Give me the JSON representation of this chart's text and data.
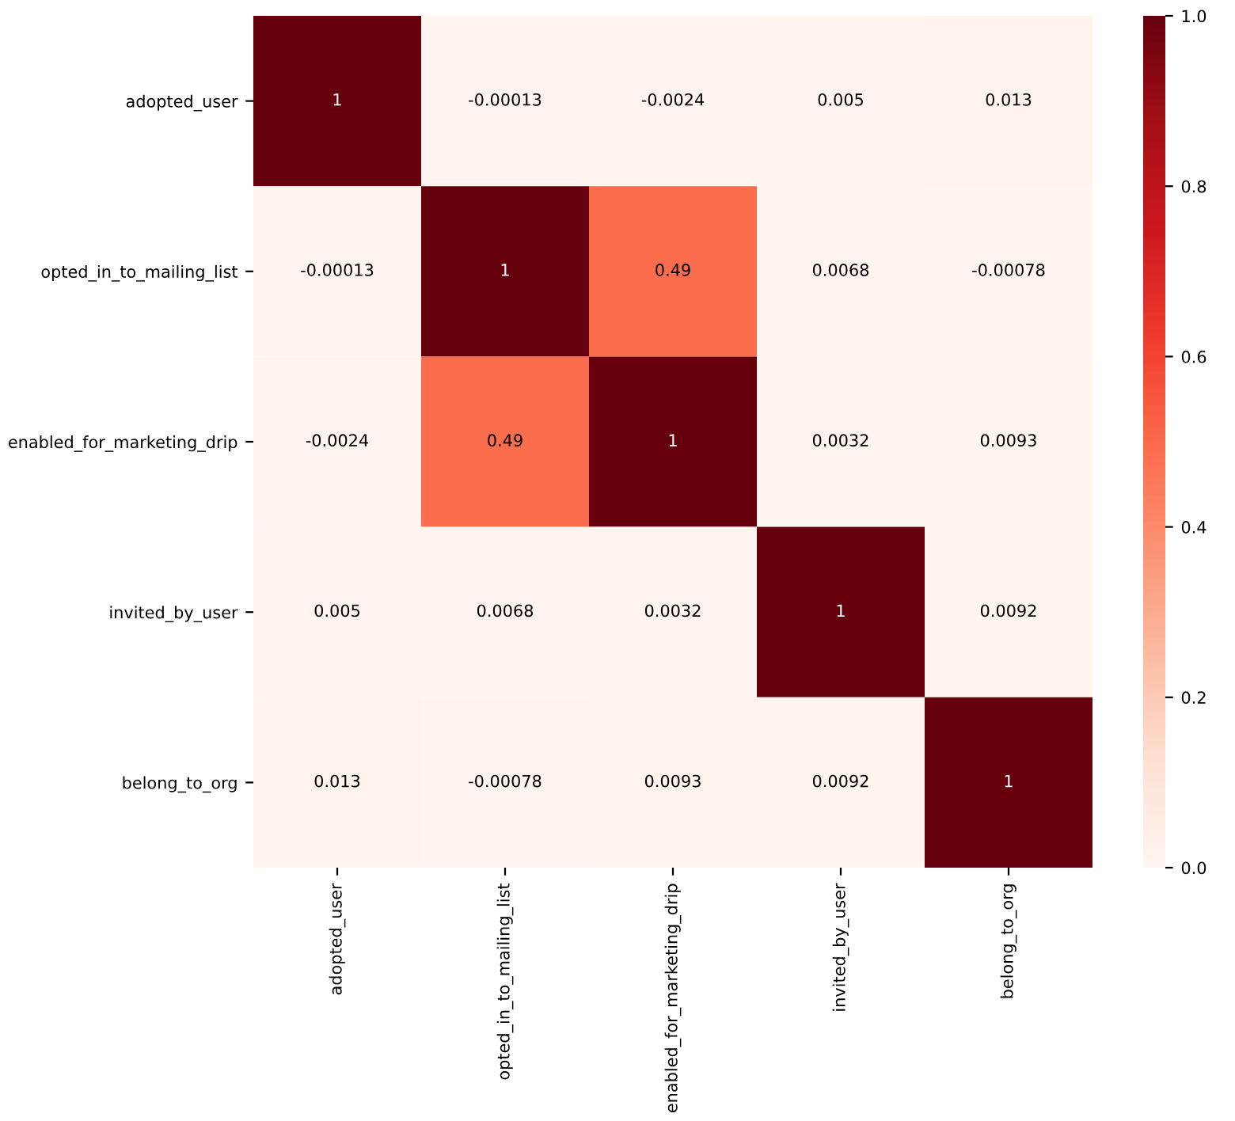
{
  "chart_data": {
    "type": "heatmap",
    "categories": [
      "adopted_user",
      "opted_in_to_mailing_list",
      "enabled_for_marketing_drip",
      "invited_by_user",
      "belong_to_org"
    ],
    "y_categories": [
      "adopted_user",
      "opted_in_to_mailing_list",
      "enabled_for_marketing_drip",
      "invited_by_user",
      "belong_to_org"
    ],
    "cells": [
      [
        1,
        -0.00013,
        -0.0024,
        0.005,
        0.013
      ],
      [
        -0.00013,
        1,
        0.49,
        0.0068,
        -0.00078
      ],
      [
        -0.0024,
        0.49,
        1,
        0.0032,
        0.0093
      ],
      [
        0.005,
        0.0068,
        0.0032,
        1,
        0.0092
      ],
      [
        0.013,
        -0.00078,
        0.0093,
        0.0092,
        1
      ]
    ],
    "clim": [
      0.0,
      1.0
    ],
    "cticks": [
      {
        "value": 0.0,
        "label": "0.0"
      },
      {
        "value": 0.2,
        "label": "0.2"
      },
      {
        "value": 0.4,
        "label": "0.4"
      },
      {
        "value": 0.6,
        "label": "0.6"
      },
      {
        "value": 0.8,
        "label": "0.8"
      },
      {
        "value": 1.0,
        "label": "1.0"
      }
    ],
    "data_labels": true
  }
}
